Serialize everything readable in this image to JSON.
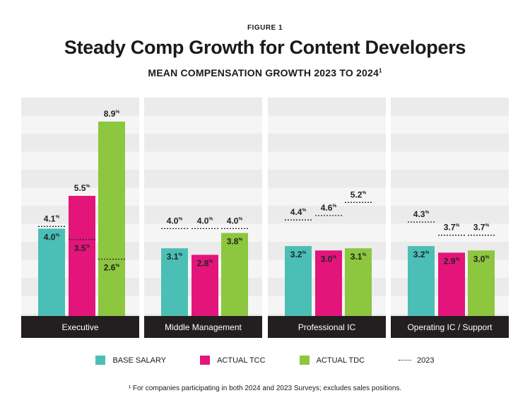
{
  "figure_label": "FIGURE 1",
  "title": "Steady Comp Growth for Content Developers",
  "subtitle": "MEAN COMPENSATION GROWTH 2023 TO 2024",
  "subtitle_sup": "1",
  "footnote": "¹ For companies participating in both 2024 and 2023 Surveys; excludes sales positions.",
  "colors": {
    "base": "#4bbfb5",
    "tcc": "#e3157a",
    "tdc": "#8dc63f",
    "panel_bg": "#ebebeb",
    "panel_stripe": "#f5f5f5",
    "category_bar": "#231f20"
  },
  "legend": [
    {
      "label": "BASE SALARY",
      "color": "#4bbfb5",
      "style": "swatch"
    },
    {
      "label": "ACTUAL TCC",
      "color": "#e3157a",
      "style": "swatch"
    },
    {
      "label": "ACTUAL TDC",
      "color": "#8dc63f",
      "style": "swatch"
    },
    {
      "label": "2023",
      "color": "#222222",
      "style": "dotted-line"
    }
  ],
  "chart_data": {
    "type": "bar",
    "categories": [
      "Executive",
      "Middle Management",
      "Professional IC",
      "Operating IC / Support"
    ],
    "ylim": [
      0,
      10
    ],
    "unit": "%",
    "grid": true,
    "series": [
      {
        "name": "BASE SALARY",
        "values": [
          4.0,
          3.1,
          3.2,
          3.2
        ],
        "prior_2023": [
          4.1,
          4.0,
          4.4,
          4.3
        ],
        "color": "#4bbfb5"
      },
      {
        "name": "ACTUAL TCC",
        "values": [
          5.5,
          2.8,
          3.0,
          2.9
        ],
        "prior_2023": [
          3.5,
          4.0,
          4.6,
          3.7
        ],
        "color": "#e3157a"
      },
      {
        "name": "ACTUAL TDC",
        "values": [
          8.9,
          3.8,
          3.1,
          3.0
        ],
        "prior_2023": [
          2.6,
          4.0,
          5.2,
          3.7
        ],
        "color": "#8dc63f"
      }
    ]
  }
}
